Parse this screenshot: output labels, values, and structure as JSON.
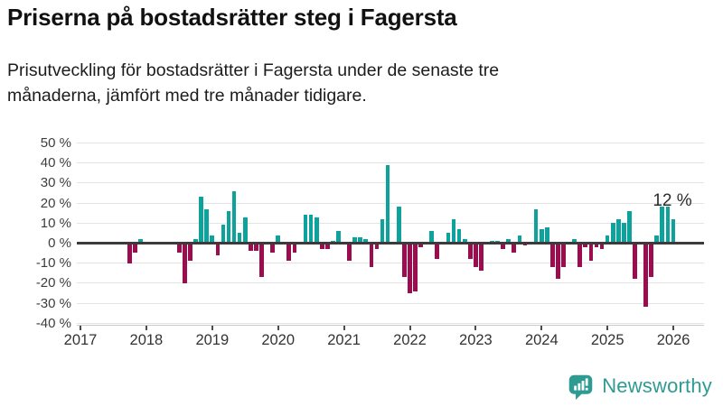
{
  "header": {
    "title": "Priserna på bostadsrätter steg i Fagersta",
    "subtitle_lines": [
      "Prisutveckling för bostadsrätter i Fagersta under de senaste tre",
      "månaderna, jämfört med tre månader tidigare."
    ]
  },
  "chart_data": {
    "type": "bar",
    "title": "Priserna på bostadsrätter steg i Fagersta",
    "ylabel": "",
    "xlabel": "",
    "unit": "%",
    "ylim": [
      -40,
      50
    ],
    "grid": true,
    "y_axis_labels": [
      "50 %",
      "40 %",
      "30 %",
      "20 %",
      "10 %",
      "0 %",
      "-10 %",
      "-20 %",
      "-30 %",
      "-40 %"
    ],
    "x_axis_years": [
      "2017",
      "2018",
      "2019",
      "2020",
      "2021",
      "2022",
      "2023",
      "2024",
      "2025",
      "2026"
    ],
    "month_index_origin": "0 = January 2017, monthly bars",
    "bars": [
      {
        "m": 9,
        "v": -10
      },
      {
        "m": 10,
        "v": -5
      },
      {
        "m": 11,
        "v": 2
      },
      {
        "m": 18,
        "v": -5
      },
      {
        "m": 19,
        "v": -20
      },
      {
        "m": 20,
        "v": -9
      },
      {
        "m": 21,
        "v": 2
      },
      {
        "m": 22,
        "v": 23
      },
      {
        "m": 23,
        "v": 17
      },
      {
        "m": 24,
        "v": 4
      },
      {
        "m": 25,
        "v": -6
      },
      {
        "m": 26,
        "v": 9
      },
      {
        "m": 27,
        "v": 16
      },
      {
        "m": 28,
        "v": 26
      },
      {
        "m": 29,
        "v": 5
      },
      {
        "m": 30,
        "v": 13
      },
      {
        "m": 31,
        "v": -4
      },
      {
        "m": 32,
        "v": -4
      },
      {
        "m": 33,
        "v": -17
      },
      {
        "m": 35,
        "v": -5
      },
      {
        "m": 36,
        "v": 4
      },
      {
        "m": 38,
        "v": -9
      },
      {
        "m": 39,
        "v": -5
      },
      {
        "m": 41,
        "v": 14
      },
      {
        "m": 42,
        "v": 14
      },
      {
        "m": 43,
        "v": 13
      },
      {
        "m": 44,
        "v": -3
      },
      {
        "m": 45,
        "v": -3
      },
      {
        "m": 46,
        "v": 1
      },
      {
        "m": 47,
        "v": 6
      },
      {
        "m": 49,
        "v": -9
      },
      {
        "m": 50,
        "v": 3
      },
      {
        "m": 51,
        "v": 3
      },
      {
        "m": 52,
        "v": 2
      },
      {
        "m": 53,
        "v": -12
      },
      {
        "m": 54,
        "v": -3
      },
      {
        "m": 55,
        "v": 12
      },
      {
        "m": 56,
        "v": 39
      },
      {
        "m": 58,
        "v": 18
      },
      {
        "m": 59,
        "v": -17
      },
      {
        "m": 60,
        "v": -25
      },
      {
        "m": 61,
        "v": -24
      },
      {
        "m": 62,
        "v": -2
      },
      {
        "m": 64,
        "v": 6
      },
      {
        "m": 65,
        "v": -8
      },
      {
        "m": 67,
        "v": 5
      },
      {
        "m": 68,
        "v": 12
      },
      {
        "m": 69,
        "v": 7
      },
      {
        "m": 70,
        "v": 2
      },
      {
        "m": 71,
        "v": -8
      },
      {
        "m": 72,
        "v": -12
      },
      {
        "m": 73,
        "v": -14
      },
      {
        "m": 75,
        "v": 1
      },
      {
        "m": 76,
        "v": 1
      },
      {
        "m": 77,
        "v": -3
      },
      {
        "m": 78,
        "v": 2
      },
      {
        "m": 79,
        "v": -5
      },
      {
        "m": 80,
        "v": 4
      },
      {
        "m": 81,
        "v": -1
      },
      {
        "m": 83,
        "v": 17
      },
      {
        "m": 84,
        "v": 7
      },
      {
        "m": 85,
        "v": 8
      },
      {
        "m": 86,
        "v": -12
      },
      {
        "m": 87,
        "v": -18
      },
      {
        "m": 88,
        "v": -12
      },
      {
        "m": 90,
        "v": 2
      },
      {
        "m": 91,
        "v": -12
      },
      {
        "m": 92,
        "v": -2
      },
      {
        "m": 93,
        "v": -9
      },
      {
        "m": 94,
        "v": -2
      },
      {
        "m": 95,
        "v": -3
      },
      {
        "m": 96,
        "v": 4
      },
      {
        "m": 97,
        "v": 10
      },
      {
        "m": 98,
        "v": 12
      },
      {
        "m": 99,
        "v": 10
      },
      {
        "m": 100,
        "v": 16
      },
      {
        "m": 101,
        "v": -18
      },
      {
        "m": 103,
        "v": -32
      },
      {
        "m": 104,
        "v": -17
      },
      {
        "m": 105,
        "v": 4
      },
      {
        "m": 106,
        "v": 18
      },
      {
        "m": 107,
        "v": 18
      },
      {
        "m": 108,
        "v": 12
      }
    ],
    "annotation": {
      "text": "12 %",
      "m": 108
    },
    "colors": {
      "positive": "#0ea29d",
      "negative": "#9c0d4f",
      "zero_line": "#3b3b3b",
      "grid": "#e4e4e4"
    },
    "legend_position": "none"
  },
  "footer": {
    "brand": "Newsworthy",
    "brand_color": "#2e9b93"
  }
}
